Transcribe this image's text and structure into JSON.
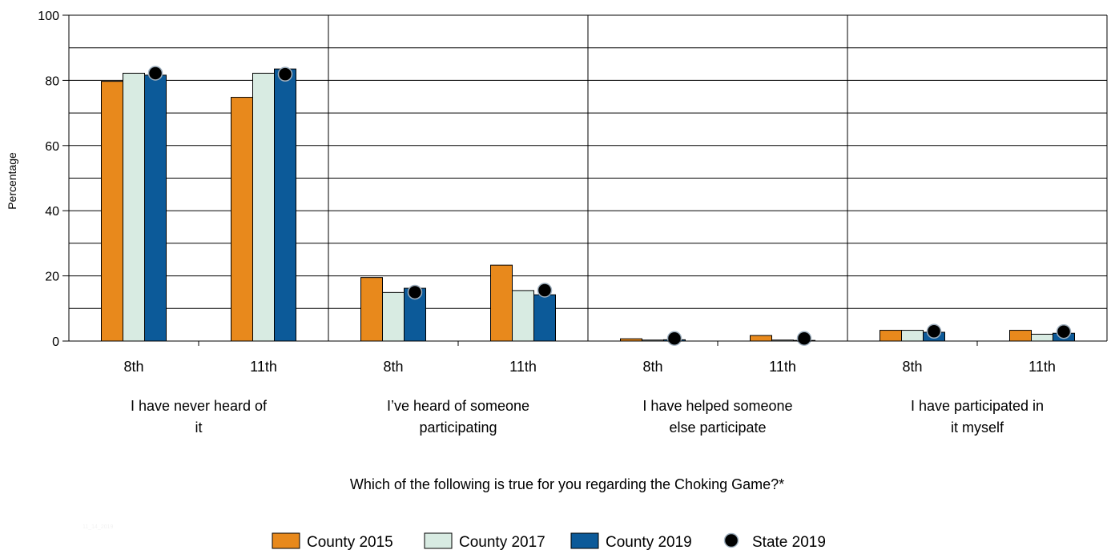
{
  "chart_data": {
    "type": "bar",
    "ylabel": "Percentage",
    "xlabel": "Which of the following is true for you regarding the Choking Game?*",
    "ylim": [
      0,
      100
    ],
    "yticks": [
      0,
      20,
      40,
      60,
      80,
      100
    ],
    "grid": true,
    "legend_position": "bottom",
    "footnote": "11_14_2019",
    "groups": [
      {
        "label_lines": [
          "I have never heard of",
          "it"
        ],
        "subgroups": [
          {
            "label": "8th",
            "values": {
              "County 2015": 79.7,
              "County 2017": 82.2,
              "County 2019": 81.6,
              "State 2019": 82.2
            }
          },
          {
            "label": "11th",
            "values": {
              "County 2015": 74.8,
              "County 2017": 82.2,
              "County 2019": 83.5,
              "State 2019": 81.9
            }
          }
        ]
      },
      {
        "label_lines": [
          "I’ve heard of someone",
          "participating"
        ],
        "subgroups": [
          {
            "label": "8th",
            "values": {
              "County 2015": 19.5,
              "County 2017": 14.9,
              "County 2019": 16.2,
              "State 2019": 15.0
            }
          },
          {
            "label": "11th",
            "values": {
              "County 2015": 23.3,
              "County 2017": 15.5,
              "County 2019": 14.2,
              "State 2019": 15.6
            }
          }
        ]
      },
      {
        "label_lines": [
          "I have helped someone",
          "else participate"
        ],
        "subgroups": [
          {
            "label": "8th",
            "values": {
              "County 2015": 0.7,
              "County 2017": 0.3,
              "County 2019": 0.4,
              "State 2019": 0.8
            }
          },
          {
            "label": "11th",
            "values": {
              "County 2015": 1.7,
              "County 2017": 0.3,
              "County 2019": 0.2,
              "State 2019": 0.8
            }
          }
        ]
      },
      {
        "label_lines": [
          "I have participated in",
          "it myself"
        ],
        "subgroups": [
          {
            "label": "8th",
            "values": {
              "County 2015": 3.3,
              "County 2017": 3.3,
              "County 2019": 2.7,
              "State 2019": 3.0
            }
          },
          {
            "label": "11th",
            "values": {
              "County 2015": 3.3,
              "County 2017": 2.1,
              "County 2019": 2.4,
              "State 2019": 2.9
            }
          }
        ]
      }
    ],
    "series": [
      {
        "name": "County 2015",
        "kind": "bar",
        "color": "#e8891c"
      },
      {
        "name": "County 2017",
        "kind": "bar",
        "color": "#d8ebe2"
      },
      {
        "name": "County 2019",
        "kind": "bar",
        "color": "#0c5a99"
      },
      {
        "name": "State 2019",
        "kind": "marker",
        "color": "#000000"
      }
    ]
  }
}
